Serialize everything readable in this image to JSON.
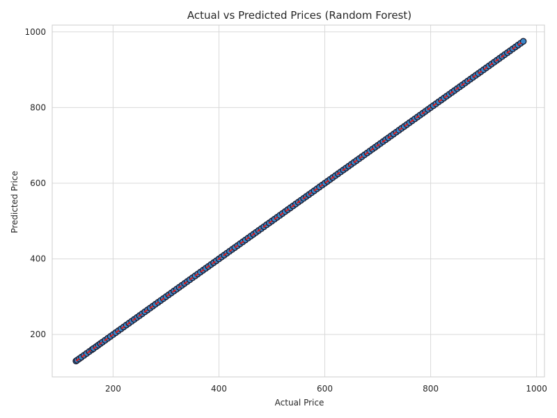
{
  "chart_data": {
    "type": "scatter",
    "title": "Actual vs Predicted Prices (Random Forest)",
    "xlabel": "Actual Price",
    "ylabel": "Predicted Price",
    "xlim": [
      85,
      1015
    ],
    "ylim": [
      88,
      1018
    ],
    "xticks": [
      200,
      400,
      600,
      800,
      1000
    ],
    "yticks": [
      200,
      400,
      600,
      800,
      1000
    ],
    "grid": true,
    "series": [
      {
        "x": [
          130,
          132,
          136,
          140,
          145,
          150,
          155,
          160,
          163,
          168,
          172,
          176,
          180,
          185,
          190,
          195,
          200,
          205,
          210,
          215,
          220,
          225,
          230,
          235,
          240,
          245,
          250,
          255,
          260,
          265,
          270,
          275,
          280,
          285,
          290,
          295,
          300,
          305,
          310,
          315,
          320,
          325,
          330,
          335,
          340,
          345,
          350,
          355,
          360,
          365,
          370,
          375,
          380,
          385,
          390,
          395,
          400,
          405,
          410,
          415,
          420,
          425,
          430,
          435,
          440,
          445,
          450,
          455,
          460,
          465,
          470,
          475,
          480,
          485,
          490,
          495,
          500,
          505,
          510,
          515,
          520,
          525,
          530,
          535,
          540,
          545,
          550,
          555,
          560,
          565,
          570,
          575,
          580,
          585,
          590,
          595,
          600,
          605,
          610,
          615,
          620,
          625,
          630,
          635,
          640,
          645,
          650,
          655,
          660,
          665,
          670,
          675,
          680,
          685,
          690,
          695,
          700,
          705,
          710,
          715,
          720,
          725,
          730,
          735,
          740,
          745,
          750,
          755,
          760,
          765,
          770,
          775,
          780,
          785,
          790,
          795,
          800,
          805,
          810,
          815,
          820,
          825,
          830,
          835,
          840,
          845,
          850,
          855,
          860,
          865,
          870,
          875,
          880,
          885,
          890,
          895,
          900,
          905,
          910,
          915,
          920,
          925,
          930,
          935,
          940,
          945,
          950,
          955,
          960,
          965,
          970,
          975
        ],
        "y": [
          130,
          132,
          136,
          140,
          145,
          150,
          155,
          160,
          163,
          168,
          172,
          176,
          180,
          185,
          190,
          195,
          200,
          205,
          210,
          215,
          220,
          225,
          230,
          235,
          240,
          245,
          250,
          255,
          260,
          265,
          270,
          275,
          280,
          285,
          290,
          295,
          300,
          305,
          310,
          315,
          320,
          325,
          330,
          335,
          340,
          345,
          350,
          355,
          360,
          365,
          370,
          375,
          380,
          385,
          390,
          395,
          400,
          405,
          410,
          415,
          420,
          425,
          430,
          435,
          440,
          445,
          450,
          455,
          460,
          465,
          470,
          475,
          480,
          485,
          490,
          495,
          500,
          505,
          510,
          515,
          520,
          525,
          530,
          535,
          540,
          545,
          550,
          555,
          560,
          565,
          570,
          575,
          580,
          585,
          590,
          595,
          600,
          605,
          610,
          615,
          620,
          625,
          630,
          635,
          640,
          645,
          650,
          655,
          660,
          665,
          670,
          675,
          680,
          685,
          690,
          695,
          700,
          705,
          710,
          715,
          720,
          725,
          730,
          735,
          740,
          745,
          750,
          755,
          760,
          765,
          770,
          775,
          780,
          785,
          790,
          795,
          800,
          805,
          810,
          815,
          820,
          825,
          830,
          835,
          840,
          845,
          850,
          855,
          860,
          865,
          870,
          875,
          880,
          885,
          890,
          895,
          900,
          905,
          910,
          915,
          920,
          925,
          930,
          935,
          940,
          945,
          950,
          955,
          960,
          965,
          970,
          975
        ]
      }
    ],
    "reference_line": {
      "style": "dashed",
      "color": "#e02020",
      "from": [
        130,
        130
      ],
      "to": [
        975,
        975
      ]
    },
    "point_color": "#3a86c8",
    "point_edge_color": "#1a1a2e"
  }
}
